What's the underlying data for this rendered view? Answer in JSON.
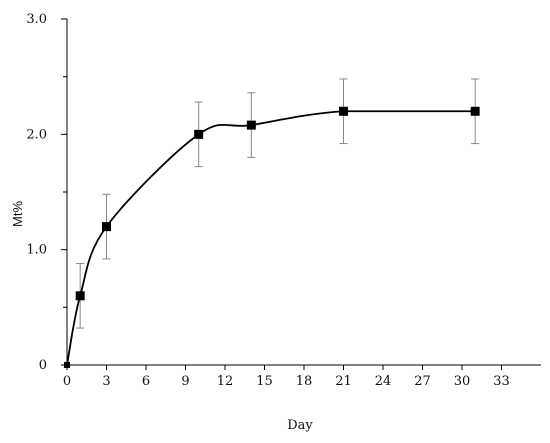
{
  "chart_data": {
    "type": "line",
    "xlabel": "Day",
    "ylabel": "Mt%",
    "xlim": [
      0,
      36
    ],
    "ylim": [
      0,
      3.0
    ],
    "x_ticks": [
      0,
      3,
      6,
      9,
      12,
      15,
      18,
      21,
      24,
      27,
      30,
      33
    ],
    "x_tick_labels": [
      "0",
      "3",
      "6",
      "9",
      "12",
      "15",
      "18",
      "21",
      "24",
      "27",
      "30",
      "33"
    ],
    "y_ticks_major": [
      0,
      1.0,
      2.0,
      3.0
    ],
    "y_tick_labels": [
      "0",
      "1.0",
      "2.0",
      "3.0"
    ],
    "y_ticks_minor": [
      0.5,
      1.5,
      2.5
    ],
    "grid": false,
    "series": [
      {
        "x": [
          0,
          1,
          3,
          10,
          14,
          21,
          31
        ],
        "y": [
          0,
          0.6,
          1.2,
          2.0,
          2.08,
          2.2,
          2.2
        ],
        "error": [
          0,
          0.28,
          0.28,
          0.28,
          0.28,
          0.28,
          0.28
        ],
        "marker": "square",
        "line_color": "#000000",
        "errorbar_color": "#888888"
      }
    ]
  }
}
